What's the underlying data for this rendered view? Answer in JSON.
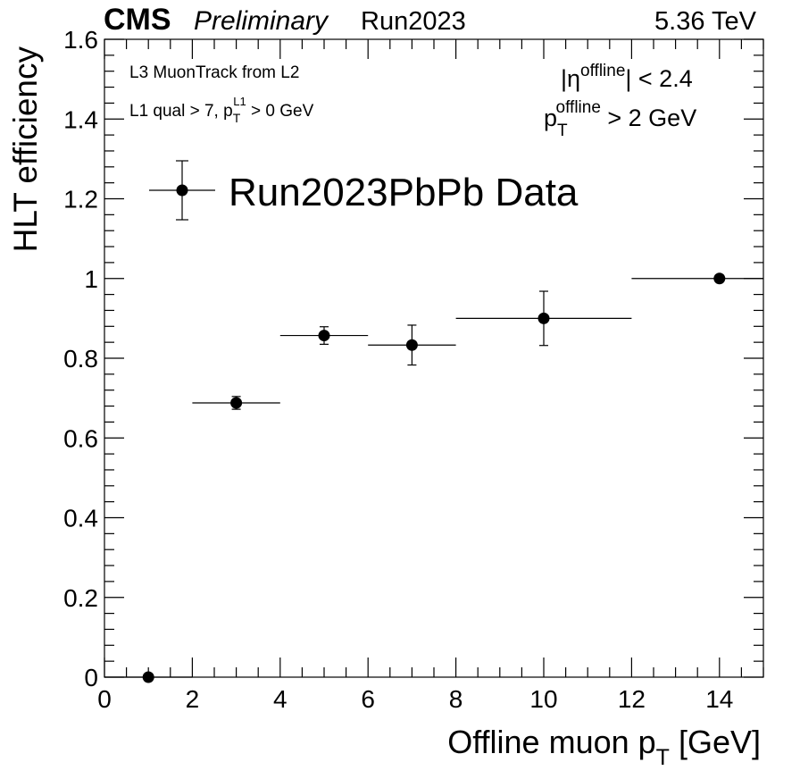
{
  "header": {
    "experiment": "CMS",
    "status": "Preliminary",
    "run": "Run2023",
    "energy": "5.36 TeV"
  },
  "annotations": {
    "line1": "L3 MuonTrack from L2",
    "line2_prefix": "L1 qual > 7, p",
    "line2_sub": "T",
    "line2_sup": "L1",
    "line2_suffix": " > 0 GeV",
    "eta_cut_prefix": "|η",
    "eta_cut_sup": "offline",
    "eta_cut_suffix": "| < 2.4",
    "pt_cut_prefix": "p",
    "pt_cut_sub": "T",
    "pt_cut_sup": "offline",
    "pt_cut_suffix": " > 2 GeV"
  },
  "chart_data": {
    "type": "scatter",
    "xlabel_prefix": "Offline muon p",
    "xlabel_sub": "T",
    "xlabel_suffix": " [GeV]",
    "ylabel": "HLT efficiency",
    "xlim": [
      0,
      15
    ],
    "ylim": [
      0,
      1.6
    ],
    "x_ticks": [
      "0",
      "2",
      "4",
      "6",
      "8",
      "10",
      "12",
      "14"
    ],
    "y_ticks": [
      "0",
      "0.2",
      "0.4",
      "0.6",
      "0.8",
      "1",
      "1.2",
      "1.4",
      "1.6"
    ],
    "legend": {
      "position": "top-left",
      "label": "Run2023PbPb Data"
    },
    "series": [
      {
        "name": "Run2023PbPb Data",
        "points": [
          {
            "x": 1,
            "xlo": 0,
            "xhi": 2,
            "y": 0,
            "yerr_lo": 0,
            "yerr_hi": 0
          },
          {
            "x": 3,
            "xlo": 2,
            "xhi": 4,
            "y": 0.688,
            "yerr_lo": 0.016,
            "yerr_hi": 0.016
          },
          {
            "x": 5,
            "xlo": 4,
            "xhi": 6,
            "y": 0.857,
            "yerr_lo": 0.022,
            "yerr_hi": 0.022
          },
          {
            "x": 7,
            "xlo": 6,
            "xhi": 8,
            "y": 0.833,
            "yerr_lo": 0.05,
            "yerr_hi": 0.05
          },
          {
            "x": 10,
            "xlo": 8,
            "xhi": 12,
            "y": 0.9,
            "yerr_lo": 0.068,
            "yerr_hi": 0.068
          },
          {
            "x": 14,
            "xlo": 12,
            "xhi": 16,
            "y": 1.0,
            "yerr_lo": 0,
            "yerr_hi": 0
          }
        ]
      }
    ]
  }
}
